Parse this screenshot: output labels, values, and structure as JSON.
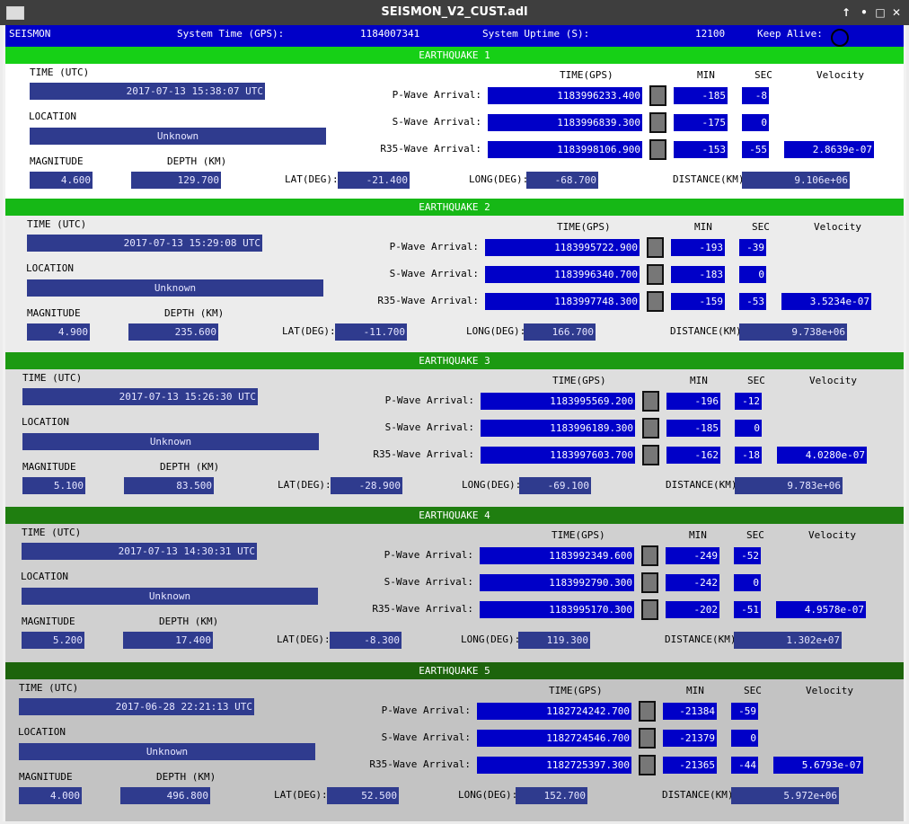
{
  "window": {
    "title": "SEISMON_V2_CUST.adl",
    "buttons": [
      "↑",
      "•",
      "□",
      "✕"
    ]
  },
  "topbar": {
    "app_label": "SEISMON",
    "system_time_label": "System Time (GPS):",
    "system_time_value": "1184007341",
    "uptime_label": "System Uptime (S):",
    "uptime_value": "12100",
    "keep_alive_label": "Keep Alive:"
  },
  "labels": {
    "time_utc": "TIME (UTC)",
    "location": "LOCATION",
    "magnitude": "MAGNITUDE",
    "depth": "DEPTH (KM)",
    "lat": "LAT(DEG):",
    "long": "LONG(DEG):",
    "distance": "DISTANCE(KM):",
    "time_gps": "TIME(GPS)",
    "min": "MIN",
    "sec": "SEC",
    "velocity": "Velocity",
    "p_wave": "P-Wave Arrival:",
    "s_wave": "S-Wave Arrival:",
    "r35_wave": "R35-Wave Arrival:"
  },
  "colors": {
    "header_green": [
      "#16d016",
      "#16b816",
      "#1c9a12",
      "#1f7e10",
      "#1d640c"
    ],
    "body_bg": [
      "#ffffff",
      "#ececec",
      "#dedede",
      "#d0d0d0",
      "#c3c3c3"
    ],
    "dark_field": "#2f3b8e",
    "blue_field": "#0000c8"
  },
  "earthquakes": [
    {
      "title": "EARTHQUAKE 1",
      "time_utc": "2017-07-13 15:38:07 UTC",
      "location": "Unknown",
      "magnitude": "4.600",
      "depth": "129.700",
      "lat": "-21.400",
      "long": "-68.700",
      "distance": "9.106e+06",
      "p": {
        "gps": "1183996233.400",
        "min": "-185",
        "sec": "-8"
      },
      "s": {
        "gps": "1183996839.300",
        "min": "-175",
        "sec": "0"
      },
      "r": {
        "gps": "1183998106.900",
        "min": "-153",
        "sec": "-55",
        "velocity": "2.8639e-07"
      }
    },
    {
      "title": "EARTHQUAKE 2",
      "time_utc": "2017-07-13 15:29:08 UTC",
      "location": "Unknown",
      "magnitude": "4.900",
      "depth": "235.600",
      "lat": "-11.700",
      "long": "166.700",
      "distance": "9.738e+06",
      "p": {
        "gps": "1183995722.900",
        "min": "-193",
        "sec": "-39"
      },
      "s": {
        "gps": "1183996340.700",
        "min": "-183",
        "sec": "0"
      },
      "r": {
        "gps": "1183997748.300",
        "min": "-159",
        "sec": "-53",
        "velocity": "3.5234e-07"
      }
    },
    {
      "title": "EARTHQUAKE 3",
      "time_utc": "2017-07-13 15:26:30 UTC",
      "location": "Unknown",
      "magnitude": "5.100",
      "depth": "83.500",
      "lat": "-28.900",
      "long": "-69.100",
      "distance": "9.783e+06",
      "p": {
        "gps": "1183995569.200",
        "min": "-196",
        "sec": "-12"
      },
      "s": {
        "gps": "1183996189.300",
        "min": "-185",
        "sec": "0"
      },
      "r": {
        "gps": "1183997603.700",
        "min": "-162",
        "sec": "-18",
        "velocity": "4.0280e-07"
      }
    },
    {
      "title": "EARTHQUAKE 4",
      "time_utc": "2017-07-13 14:30:31 UTC",
      "location": "Unknown",
      "magnitude": "5.200",
      "depth": "17.400",
      "lat": "-8.300",
      "long": "119.300",
      "distance": "1.302e+07",
      "p": {
        "gps": "1183992349.600",
        "min": "-249",
        "sec": "-52"
      },
      "s": {
        "gps": "1183992790.300",
        "min": "-242",
        "sec": "0"
      },
      "r": {
        "gps": "1183995170.300",
        "min": "-202",
        "sec": "-51",
        "velocity": "4.9578e-07"
      }
    },
    {
      "title": "EARTHQUAKE 5",
      "time_utc": "2017-06-28 22:21:13 UTC",
      "location": "Unknown",
      "magnitude": "4.000",
      "depth": "496.800",
      "lat": "52.500",
      "long": "152.700",
      "distance": "5.972e+06",
      "p": {
        "gps": "1182724242.700",
        "min": "-21384",
        "sec": "-59"
      },
      "s": {
        "gps": "1182724546.700",
        "min": "-21379",
        "sec": "0"
      },
      "r": {
        "gps": "1182725397.300",
        "min": "-21365",
        "sec": "-44",
        "velocity": "5.6793e-07"
      }
    }
  ]
}
